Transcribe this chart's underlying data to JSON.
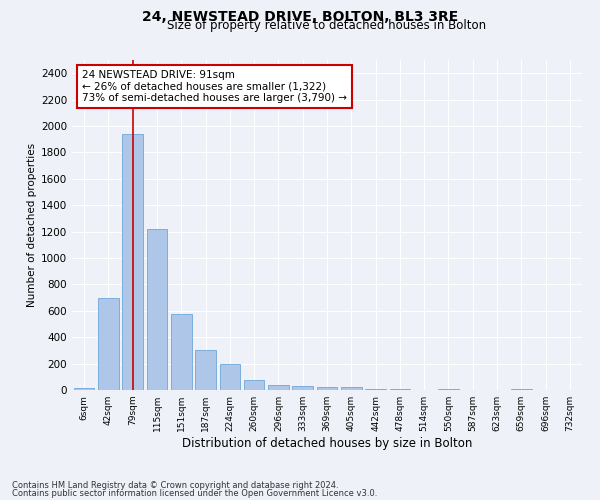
{
  "title1": "24, NEWSTEAD DRIVE, BOLTON, BL3 3RE",
  "title2": "Size of property relative to detached houses in Bolton",
  "xlabel": "Distribution of detached houses by size in Bolton",
  "ylabel": "Number of detached properties",
  "bin_labels": [
    "6sqm",
    "42sqm",
    "79sqm",
    "115sqm",
    "151sqm",
    "187sqm",
    "224sqm",
    "260sqm",
    "296sqm",
    "333sqm",
    "369sqm",
    "405sqm",
    "442sqm",
    "478sqm",
    "514sqm",
    "550sqm",
    "587sqm",
    "623sqm",
    "659sqm",
    "696sqm",
    "732sqm"
  ],
  "bar_values": [
    15,
    700,
    1940,
    1220,
    575,
    305,
    200,
    75,
    40,
    30,
    22,
    25,
    10,
    8,
    2,
    6,
    2,
    2,
    10,
    2,
    2
  ],
  "bar_color": "#aec6e8",
  "bar_edge_color": "#5b9bd5",
  "property_bin_index": 2,
  "annotation_text": "24 NEWSTEAD DRIVE: 91sqm\n← 26% of detached houses are smaller (1,322)\n73% of semi-detached houses are larger (3,790) →",
  "vline_color": "#cc0000",
  "annotation_box_edge_color": "#cc0000",
  "annotation_box_face_color": "#ffffff",
  "ylim": [
    0,
    2500
  ],
  "yticks": [
    0,
    200,
    400,
    600,
    800,
    1000,
    1200,
    1400,
    1600,
    1800,
    2000,
    2200,
    2400
  ],
  "footer1": "Contains HM Land Registry data © Crown copyright and database right 2024.",
  "footer2": "Contains public sector information licensed under the Open Government Licence v3.0.",
  "background_color": "#eef2f8",
  "grid_color": "#ffffff"
}
